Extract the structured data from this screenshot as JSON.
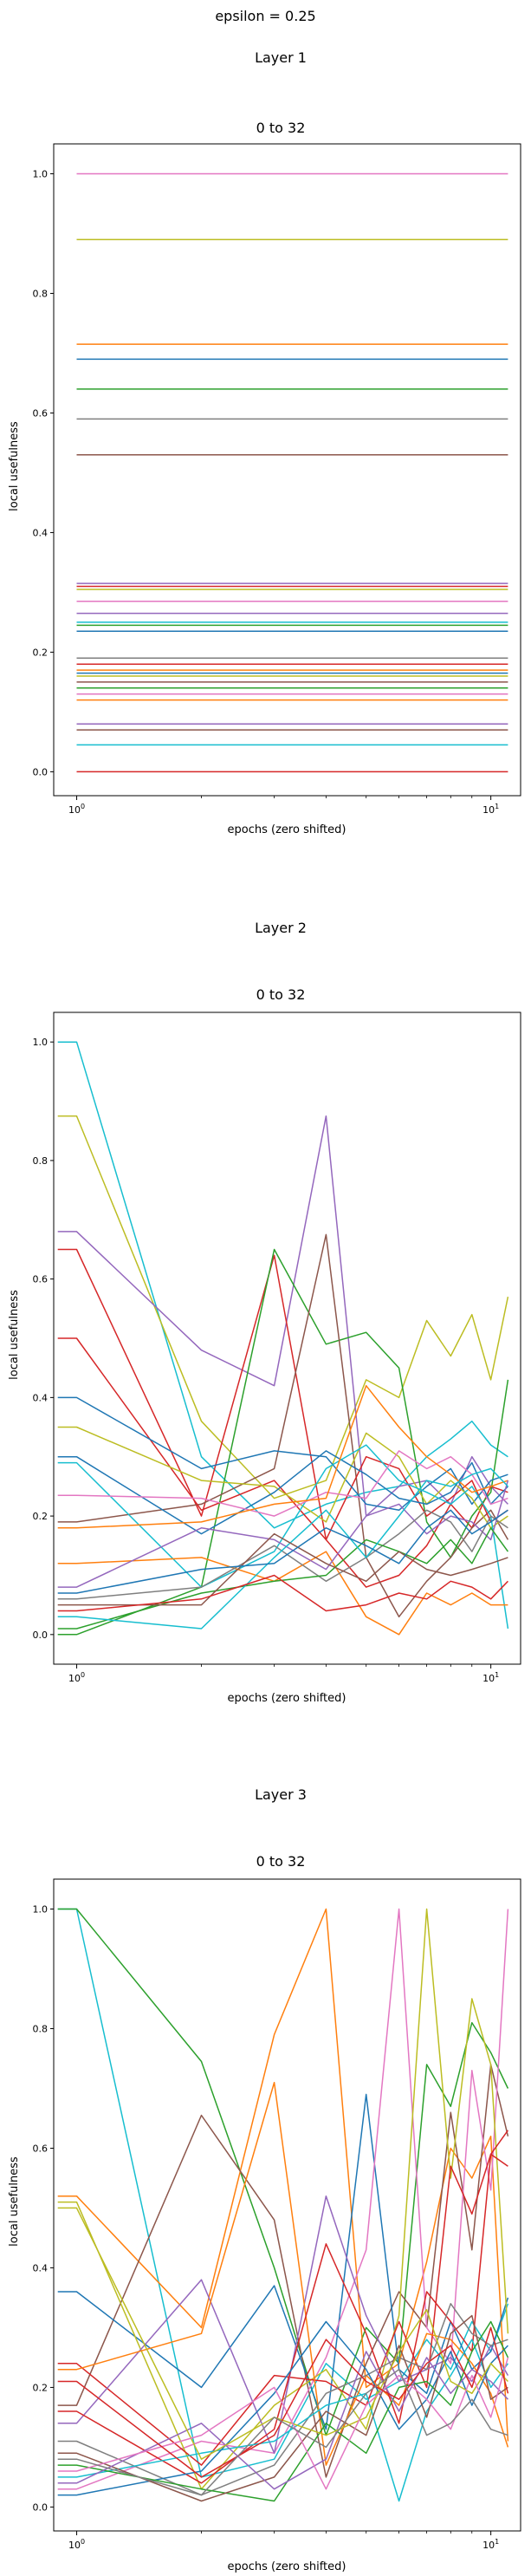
{
  "suptitle": "epsilon = 0.25",
  "chart_data": [
    {
      "type": "line",
      "panel_title": "Layer 1",
      "title": "0 to 32",
      "xlabel": "epochs (zero shifted)",
      "ylabel": "local usefulness",
      "xscale": "log",
      "xlim": [
        0.88,
        11.8
      ],
      "ylim": [
        -0.04,
        1.05
      ],
      "x_ticks": [
        1,
        10
      ],
      "x_tick_labels": [
        "10^0",
        "10^1"
      ],
      "y_ticks": [
        0.0,
        0.2,
        0.4,
        0.6,
        0.8,
        1.0
      ],
      "y_tick_labels": [
        "0.0",
        "0.2",
        "0.4",
        "0.6",
        "0.8",
        "1.0"
      ],
      "x": [
        1,
        11
      ],
      "series": [
        {
          "color": "#e377c2",
          "values": [
            1.0,
            1.0
          ]
        },
        {
          "color": "#bcbd22",
          "values": [
            0.89,
            0.89
          ]
        },
        {
          "color": "#ff7f0e",
          "values": [
            0.715,
            0.715
          ]
        },
        {
          "color": "#1f77b4",
          "values": [
            0.69,
            0.69
          ]
        },
        {
          "color": "#2ca02c",
          "values": [
            0.64,
            0.64
          ]
        },
        {
          "color": "#7f7f7f",
          "values": [
            0.59,
            0.59
          ]
        },
        {
          "color": "#8c564b",
          "values": [
            0.53,
            0.53
          ]
        },
        {
          "color": "#9467bd",
          "values": [
            0.315,
            0.315
          ]
        },
        {
          "color": "#d62728",
          "values": [
            0.31,
            0.31
          ]
        },
        {
          "color": "#bcbd22",
          "values": [
            0.305,
            0.305
          ]
        },
        {
          "color": "#e377c2",
          "values": [
            0.285,
            0.285
          ]
        },
        {
          "color": "#9467bd",
          "values": [
            0.265,
            0.265
          ]
        },
        {
          "color": "#17becf",
          "values": [
            0.25,
            0.25
          ]
        },
        {
          "color": "#2ca02c",
          "values": [
            0.245,
            0.245
          ]
        },
        {
          "color": "#1f77b4",
          "values": [
            0.235,
            0.235
          ]
        },
        {
          "color": "#7f7f7f",
          "values": [
            0.19,
            0.19
          ]
        },
        {
          "color": "#d62728",
          "values": [
            0.18,
            0.18
          ]
        },
        {
          "color": "#ff7f0e",
          "values": [
            0.17,
            0.17
          ]
        },
        {
          "color": "#1f77b4",
          "values": [
            0.165,
            0.165
          ]
        },
        {
          "color": "#bcbd22",
          "values": [
            0.16,
            0.16
          ]
        },
        {
          "color": "#8c564b",
          "values": [
            0.15,
            0.15
          ]
        },
        {
          "color": "#2ca02c",
          "values": [
            0.14,
            0.14
          ]
        },
        {
          "color": "#e377c2",
          "values": [
            0.13,
            0.13
          ]
        },
        {
          "color": "#ff7f0e",
          "values": [
            0.12,
            0.12
          ]
        },
        {
          "color": "#9467bd",
          "values": [
            0.08,
            0.08
          ]
        },
        {
          "color": "#8c564b",
          "values": [
            0.07,
            0.07
          ]
        },
        {
          "color": "#17becf",
          "values": [
            0.045,
            0.045
          ]
        },
        {
          "color": "#d62728",
          "values": [
            0.0,
            0.0
          ]
        }
      ]
    },
    {
      "type": "line",
      "panel_title": "Layer 2",
      "title": "0 to 32",
      "xlabel": "epochs (zero shifted)",
      "ylabel": "local usefulness",
      "xscale": "log",
      "xlim": [
        0.88,
        11.8
      ],
      "ylim": [
        -0.05,
        1.05
      ],
      "x_ticks": [
        1,
        10
      ],
      "x_tick_labels": [
        "10^0",
        "10^1"
      ],
      "y_ticks": [
        0.0,
        0.2,
        0.4,
        0.6,
        0.8,
        1.0
      ],
      "y_tick_labels": [
        "0.0",
        "0.2",
        "0.4",
        "0.6",
        "0.8",
        "1.0"
      ],
      "x": [
        0.9,
        1,
        2,
        3,
        4,
        5,
        6,
        7,
        8,
        9,
        10,
        11
      ],
      "series": [
        {
          "color": "#17becf",
          "values": [
            1.0,
            1.0,
            0.3,
            0.18,
            0.22,
            0.24,
            0.25,
            0.3,
            0.33,
            0.36,
            0.32,
            0.3
          ]
        },
        {
          "color": "#bcbd22",
          "values": [
            0.875,
            0.875,
            0.36,
            0.23,
            0.26,
            0.43,
            0.4,
            0.53,
            0.47,
            0.54,
            0.43,
            0.57
          ]
        },
        {
          "color": "#9467bd",
          "values": [
            0.68,
            0.68,
            0.48,
            0.42,
            0.875,
            0.2,
            0.25,
            0.26,
            0.22,
            0.3,
            0.25,
            0.22
          ]
        },
        {
          "color": "#d62728",
          "values": [
            0.65,
            0.65,
            0.2,
            0.64,
            0.16,
            0.08,
            0.1,
            0.15,
            0.22,
            0.18,
            0.25,
            0.24
          ]
        },
        {
          "color": "#2ca02c",
          "values": [
            0.0,
            0.0,
            0.08,
            0.65,
            0.49,
            0.51,
            0.45,
            0.19,
            0.13,
            0.2,
            0.24,
            0.43
          ]
        },
        {
          "color": "#8c564b",
          "values": [
            0.19,
            0.19,
            0.22,
            0.28,
            0.675,
            0.13,
            0.03,
            0.09,
            0.13,
            0.18,
            0.21,
            0.16
          ]
        },
        {
          "color": "#d62728",
          "values": [
            0.5,
            0.5,
            0.21,
            0.26,
            0.16,
            0.3,
            0.28,
            0.2,
            0.23,
            0.26,
            0.19,
            0.21
          ]
        },
        {
          "color": "#1f77b4",
          "values": [
            0.4,
            0.4,
            0.28,
            0.31,
            0.3,
            0.22,
            0.21,
            0.25,
            0.28,
            0.22,
            0.26,
            0.27
          ]
        },
        {
          "color": "#bcbd22",
          "values": [
            0.35,
            0.35,
            0.26,
            0.25,
            0.19,
            0.34,
            0.3,
            0.22,
            0.26,
            0.23,
            0.18,
            0.2
          ]
        },
        {
          "color": "#1f77b4",
          "values": [
            0.3,
            0.3,
            0.17,
            0.24,
            0.31,
            0.27,
            0.23,
            0.22,
            0.24,
            0.29,
            0.22,
            0.25
          ]
        },
        {
          "color": "#17becf",
          "values": [
            0.29,
            0.29,
            0.08,
            0.14,
            0.28,
            0.32,
            0.26,
            0.24,
            0.22,
            0.25,
            0.2,
            0.01
          ]
        },
        {
          "color": "#e377c2",
          "values": [
            0.235,
            0.235,
            0.23,
            0.2,
            0.24,
            0.23,
            0.31,
            0.28,
            0.3,
            0.27,
            0.22,
            0.23
          ]
        },
        {
          "color": "#ff7f0e",
          "values": [
            0.18,
            0.18,
            0.19,
            0.22,
            0.23,
            0.42,
            0.35,
            0.3,
            0.27,
            0.24,
            0.25,
            0.26
          ]
        },
        {
          "color": "#ff7f0e",
          "values": [
            0.12,
            0.12,
            0.13,
            0.09,
            0.14,
            0.03,
            0.0,
            0.07,
            0.05,
            0.07,
            0.05,
            0.05
          ]
        },
        {
          "color": "#9467bd",
          "values": [
            0.08,
            0.08,
            0.18,
            0.16,
            0.11,
            0.2,
            0.22,
            0.17,
            0.2,
            0.19,
            0.16,
            0.26
          ]
        },
        {
          "color": "#7f7f7f",
          "values": [
            0.06,
            0.06,
            0.08,
            0.15,
            0.09,
            0.13,
            0.17,
            0.21,
            0.19,
            0.14,
            0.2,
            0.18
          ]
        },
        {
          "color": "#2ca02c",
          "values": [
            0.01,
            0.01,
            0.07,
            0.09,
            0.1,
            0.16,
            0.14,
            0.12,
            0.16,
            0.12,
            0.18,
            0.14
          ]
        },
        {
          "color": "#17becf",
          "values": [
            0.03,
            0.03,
            0.01,
            0.13,
            0.21,
            0.13,
            0.2,
            0.26,
            0.25,
            0.27,
            0.28,
            0.25
          ]
        },
        {
          "color": "#8c564b",
          "values": [
            0.05,
            0.05,
            0.05,
            0.17,
            0.12,
            0.09,
            0.14,
            0.11,
            0.1,
            0.11,
            0.12,
            0.13
          ]
        },
        {
          "color": "#d62728",
          "values": [
            0.04,
            0.04,
            0.06,
            0.1,
            0.04,
            0.05,
            0.07,
            0.06,
            0.09,
            0.08,
            0.06,
            0.09
          ]
        },
        {
          "color": "#1f77b4",
          "values": [
            0.07,
            0.07,
            0.11,
            0.12,
            0.18,
            0.15,
            0.12,
            0.18,
            0.21,
            0.17,
            0.19,
            0.21
          ]
        }
      ]
    },
    {
      "type": "line",
      "panel_title": "Layer 3",
      "title": "0 to 32",
      "xlabel": "epochs (zero shifted)",
      "ylabel": "local usefulness",
      "xscale": "log",
      "xlim": [
        0.88,
        11.8
      ],
      "ylim": [
        -0.04,
        1.05
      ],
      "x_ticks": [
        1,
        10
      ],
      "x_tick_labels": [
        "10^0",
        "10^1"
      ],
      "y_ticks": [
        0.0,
        0.2,
        0.4,
        0.6,
        0.8,
        1.0
      ],
      "y_tick_labels": [
        "0.0",
        "0.2",
        "0.4",
        "0.6",
        "0.8",
        "1.0"
      ],
      "x": [
        0.9,
        1,
        2,
        3,
        4,
        5,
        6,
        7,
        8,
        9,
        10,
        11
      ],
      "series": [
        {
          "color": "#17becf",
          "values": [
            1.0,
            1.0,
            0.05,
            0.08,
            0.24,
            0.18,
            0.21,
            0.28,
            0.23,
            0.31,
            0.26,
            0.34
          ]
        },
        {
          "color": "#2ca02c",
          "values": [
            1.0,
            1.0,
            0.745,
            0.4,
            0.12,
            0.3,
            0.24,
            0.74,
            0.67,
            0.81,
            0.76,
            0.7
          ]
        },
        {
          "color": "#ff7f0e",
          "values": [
            0.52,
            0.52,
            0.3,
            0.79,
            1.0,
            0.2,
            0.24,
            0.41,
            0.6,
            0.55,
            0.62,
            0.11
          ]
        },
        {
          "color": "#8c564b",
          "values": [
            0.17,
            0.17,
            0.655,
            0.48,
            0.05,
            0.24,
            0.36,
            0.3,
            0.66,
            0.43,
            0.74,
            0.62
          ]
        },
        {
          "color": "#1f77b4",
          "values": [
            0.36,
            0.36,
            0.2,
            0.37,
            0.13,
            0.69,
            0.23,
            0.19,
            0.31,
            0.23,
            0.26,
            0.35
          ]
        },
        {
          "color": "#e377c2",
          "values": [
            0.03,
            0.03,
            0.11,
            0.09,
            0.25,
            0.43,
            1.0,
            0.3,
            0.24,
            0.73,
            0.53,
            1.0
          ]
        },
        {
          "color": "#bcbd22",
          "values": [
            0.51,
            0.51,
            0.03,
            0.17,
            0.23,
            0.13,
            0.32,
            1.0,
            0.55,
            0.85,
            0.74,
            0.29
          ]
        },
        {
          "color": "#d62728",
          "values": [
            0.24,
            0.24,
            0.07,
            0.22,
            0.21,
            0.17,
            0.31,
            0.2,
            0.57,
            0.49,
            0.59,
            0.63
          ]
        },
        {
          "color": "#9467bd",
          "values": [
            0.14,
            0.14,
            0.38,
            0.09,
            0.52,
            0.32,
            0.21,
            0.23,
            0.25,
            0.21,
            0.27,
            0.22
          ]
        },
        {
          "color": "#ff7f0e",
          "values": [
            0.23,
            0.23,
            0.29,
            0.71,
            0.07,
            0.22,
            0.17,
            0.29,
            0.28,
            0.24,
            0.19,
            0.1
          ]
        },
        {
          "color": "#d62728",
          "values": [
            0.16,
            0.16,
            0.04,
            0.13,
            0.44,
            0.29,
            0.14,
            0.36,
            0.31,
            0.26,
            0.59,
            0.57
          ]
        },
        {
          "color": "#7f7f7f",
          "values": [
            0.11,
            0.11,
            0.02,
            0.07,
            0.19,
            0.22,
            0.25,
            0.23,
            0.34,
            0.29,
            0.27,
            0.28
          ]
        },
        {
          "color": "#17becf",
          "values": [
            0.05,
            0.05,
            0.09,
            0.11,
            0.17,
            0.19,
            0.01,
            0.16,
            0.22,
            0.28,
            0.2,
            0.24
          ]
        },
        {
          "color": "#1f77b4",
          "values": [
            0.02,
            0.02,
            0.06,
            0.19,
            0.31,
            0.23,
            0.13,
            0.18,
            0.26,
            0.17,
            0.24,
            0.27
          ]
        },
        {
          "color": "#2ca02c",
          "values": [
            0.07,
            0.07,
            0.03,
            0.01,
            0.14,
            0.09,
            0.2,
            0.21,
            0.17,
            0.26,
            0.31,
            0.25
          ]
        },
        {
          "color": "#8c564b",
          "values": [
            0.09,
            0.09,
            0.01,
            0.05,
            0.16,
            0.12,
            0.27,
            0.15,
            0.29,
            0.32,
            0.18,
            0.2
          ]
        },
        {
          "color": "#9467bd",
          "values": [
            0.04,
            0.04,
            0.14,
            0.03,
            0.08,
            0.26,
            0.16,
            0.25,
            0.19,
            0.23,
            0.21,
            0.18
          ]
        },
        {
          "color": "#bcbd22",
          "values": [
            0.5,
            0.5,
            0.08,
            0.15,
            0.12,
            0.15,
            0.26,
            0.33,
            0.21,
            0.19,
            0.24,
            0.21
          ]
        },
        {
          "color": "#e377c2",
          "values": [
            0.06,
            0.06,
            0.12,
            0.2,
            0.03,
            0.17,
            0.22,
            0.18,
            0.13,
            0.22,
            0.15,
            0.25
          ]
        },
        {
          "color": "#d62728",
          "values": [
            0.21,
            0.21,
            0.05,
            0.12,
            0.28,
            0.21,
            0.18,
            0.24,
            0.27,
            0.2,
            0.3,
            0.19
          ]
        },
        {
          "color": "#7f7f7f",
          "values": [
            0.08,
            0.08,
            0.02,
            0.15,
            0.1,
            0.19,
            0.23,
            0.12,
            0.14,
            0.18,
            0.13,
            0.12
          ]
        }
      ]
    }
  ]
}
